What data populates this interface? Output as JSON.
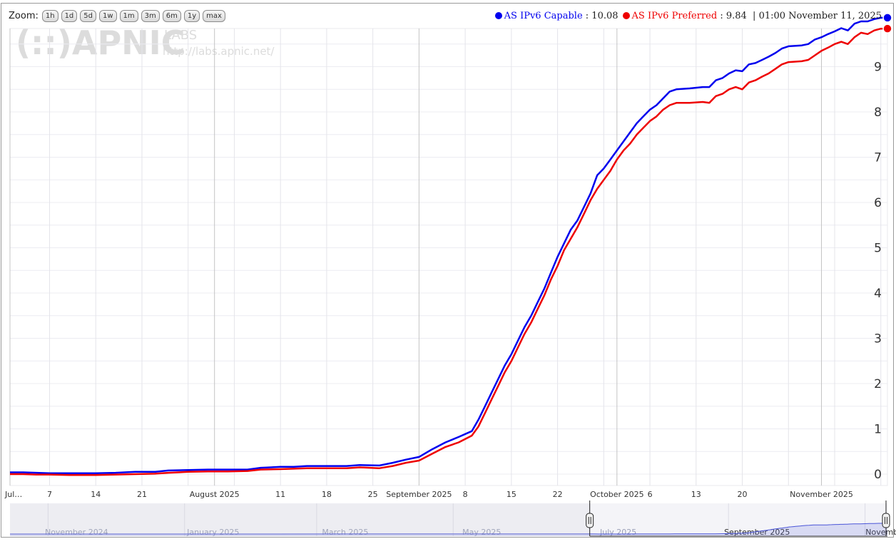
{
  "zoom": {
    "label": "Zoom:",
    "buttons": [
      "1h",
      "1d",
      "5d",
      "1w",
      "1m",
      "3m",
      "6m",
      "1y",
      "max"
    ]
  },
  "legend": {
    "capable": {
      "name": "AS IPv6 Capable",
      "value": "10.08",
      "color": "#0000ee"
    },
    "preferred": {
      "name": "AS IPv6 Preferred",
      "value": "9.84",
      "color": "#ee0000"
    },
    "timestamp": "01:00 November 11, 2025"
  },
  "watermark": {
    "logo": "(::)APNIC",
    "labs": "LABS",
    "url": "http://labs.apnic.net/"
  },
  "chart_data": {
    "type": "line",
    "x_range": [
      "2025-07-01",
      "2025-11-11"
    ],
    "ylim": [
      0,
      10.3
    ],
    "y_ticks": [
      0,
      1,
      2,
      3,
      4,
      5,
      6,
      7,
      8,
      9
    ],
    "x_ticks": [
      {
        "date": "2025-07-01",
        "label": "Jul…"
      },
      {
        "date": "2025-07-07",
        "label": "7"
      },
      {
        "date": "2025-07-14",
        "label": "14"
      },
      {
        "date": "2025-07-21",
        "label": "21"
      },
      {
        "date": "2025-08-01",
        "label": "August 2025"
      },
      {
        "date": "2025-08-11",
        "label": "11"
      },
      {
        "date": "2025-08-18",
        "label": "18"
      },
      {
        "date": "2025-08-25",
        "label": "25"
      },
      {
        "date": "2025-09-01",
        "label": "September 2025"
      },
      {
        "date": "2025-09-08",
        "label": "8"
      },
      {
        "date": "2025-09-15",
        "label": "15"
      },
      {
        "date": "2025-09-22",
        "label": "22"
      },
      {
        "date": "2025-10-01",
        "label": "October 2025"
      },
      {
        "date": "2025-10-06",
        "label": "6"
      },
      {
        "date": "2025-10-13",
        "label": "13"
      },
      {
        "date": "2025-10-20",
        "label": "20"
      },
      {
        "date": "2025-11-01",
        "label": "November 2025"
      }
    ],
    "grid": true,
    "legend_position": "top-right",
    "series": [
      {
        "name": "AS IPv6 Capable",
        "color": "#0000ee",
        "points": [
          [
            "2025-07-01",
            0.04
          ],
          [
            "2025-07-03",
            0.04
          ],
          [
            "2025-07-05",
            0.03
          ],
          [
            "2025-07-07",
            0.02
          ],
          [
            "2025-07-10",
            0.02
          ],
          [
            "2025-07-14",
            0.02
          ],
          [
            "2025-07-17",
            0.03
          ],
          [
            "2025-07-20",
            0.05
          ],
          [
            "2025-07-23",
            0.05
          ],
          [
            "2025-07-25",
            0.08
          ],
          [
            "2025-07-28",
            0.09
          ],
          [
            "2025-07-31",
            0.1
          ],
          [
            "2025-08-03",
            0.1
          ],
          [
            "2025-08-06",
            0.1
          ],
          [
            "2025-08-08",
            0.14
          ],
          [
            "2025-08-11",
            0.16
          ],
          [
            "2025-08-13",
            0.16
          ],
          [
            "2025-08-15",
            0.18
          ],
          [
            "2025-08-18",
            0.18
          ],
          [
            "2025-08-21",
            0.18
          ],
          [
            "2025-08-23",
            0.2
          ],
          [
            "2025-08-26",
            0.19
          ],
          [
            "2025-08-28",
            0.25
          ],
          [
            "2025-08-30",
            0.32
          ],
          [
            "2025-09-01",
            0.38
          ],
          [
            "2025-09-03",
            0.55
          ],
          [
            "2025-09-05",
            0.7
          ],
          [
            "2025-09-07",
            0.82
          ],
          [
            "2025-09-09",
            0.95
          ],
          [
            "2025-09-10",
            1.2
          ],
          [
            "2025-09-11",
            1.5
          ],
          [
            "2025-09-12",
            1.8
          ],
          [
            "2025-09-13",
            2.1
          ],
          [
            "2025-09-14",
            2.4
          ],
          [
            "2025-09-15",
            2.65
          ],
          [
            "2025-09-16",
            2.95
          ],
          [
            "2025-09-17",
            3.25
          ],
          [
            "2025-09-18",
            3.5
          ],
          [
            "2025-09-19",
            3.8
          ],
          [
            "2025-09-20",
            4.1
          ],
          [
            "2025-09-21",
            4.45
          ],
          [
            "2025-09-22",
            4.8
          ],
          [
            "2025-09-23",
            5.1
          ],
          [
            "2025-09-24",
            5.4
          ],
          [
            "2025-09-25",
            5.6
          ],
          [
            "2025-09-26",
            5.9
          ],
          [
            "2025-09-27",
            6.2
          ],
          [
            "2025-09-28",
            6.6
          ],
          [
            "2025-09-29",
            6.75
          ],
          [
            "2025-09-30",
            6.95
          ],
          [
            "2025-10-01",
            7.15
          ],
          [
            "2025-10-02",
            7.35
          ],
          [
            "2025-10-03",
            7.55
          ],
          [
            "2025-10-04",
            7.75
          ],
          [
            "2025-10-05",
            7.9
          ],
          [
            "2025-10-06",
            8.05
          ],
          [
            "2025-10-07",
            8.15
          ],
          [
            "2025-10-08",
            8.3
          ],
          [
            "2025-10-09",
            8.45
          ],
          [
            "2025-10-10",
            8.5
          ],
          [
            "2025-10-12",
            8.52
          ],
          [
            "2025-10-14",
            8.55
          ],
          [
            "2025-10-15",
            8.55
          ],
          [
            "2025-10-16",
            8.7
          ],
          [
            "2025-10-17",
            8.75
          ],
          [
            "2025-10-18",
            8.85
          ],
          [
            "2025-10-19",
            8.92
          ],
          [
            "2025-10-20",
            8.9
          ],
          [
            "2025-10-21",
            9.05
          ],
          [
            "2025-10-22",
            9.08
          ],
          [
            "2025-10-23",
            9.15
          ],
          [
            "2025-10-24",
            9.22
          ],
          [
            "2025-10-25",
            9.3
          ],
          [
            "2025-10-26",
            9.4
          ],
          [
            "2025-10-27",
            9.45
          ],
          [
            "2025-10-29",
            9.47
          ],
          [
            "2025-10-30",
            9.5
          ],
          [
            "2025-10-31",
            9.6
          ],
          [
            "2025-11-01",
            9.65
          ],
          [
            "2025-11-02",
            9.72
          ],
          [
            "2025-11-03",
            9.78
          ],
          [
            "2025-11-04",
            9.85
          ],
          [
            "2025-11-05",
            9.8
          ],
          [
            "2025-11-06",
            9.95
          ],
          [
            "2025-11-07",
            10.0
          ],
          [
            "2025-11-08",
            10.0
          ],
          [
            "2025-11-09",
            10.05
          ],
          [
            "2025-11-10",
            10.08
          ],
          [
            "2025-11-11",
            10.08
          ]
        ]
      },
      {
        "name": "AS IPv6 Preferred",
        "color": "#ee0000",
        "points": [
          [
            "2025-07-01",
            0.0
          ],
          [
            "2025-07-03",
            0.0
          ],
          [
            "2025-07-05",
            -0.01
          ],
          [
            "2025-07-07",
            -0.01
          ],
          [
            "2025-07-10",
            -0.02
          ],
          [
            "2025-07-14",
            -0.02
          ],
          [
            "2025-07-17",
            -0.01
          ],
          [
            "2025-07-20",
            0.0
          ],
          [
            "2025-07-23",
            0.01
          ],
          [
            "2025-07-25",
            0.03
          ],
          [
            "2025-07-28",
            0.05
          ],
          [
            "2025-07-31",
            0.06
          ],
          [
            "2025-08-03",
            0.06
          ],
          [
            "2025-08-06",
            0.07
          ],
          [
            "2025-08-08",
            0.1
          ],
          [
            "2025-08-11",
            0.11
          ],
          [
            "2025-08-13",
            0.12
          ],
          [
            "2025-08-15",
            0.13
          ],
          [
            "2025-08-18",
            0.13
          ],
          [
            "2025-08-21",
            0.13
          ],
          [
            "2025-08-23",
            0.15
          ],
          [
            "2025-08-26",
            0.13
          ],
          [
            "2025-08-28",
            0.18
          ],
          [
            "2025-08-30",
            0.25
          ],
          [
            "2025-09-01",
            0.3
          ],
          [
            "2025-09-03",
            0.45
          ],
          [
            "2025-09-05",
            0.6
          ],
          [
            "2025-09-07",
            0.7
          ],
          [
            "2025-09-09",
            0.85
          ],
          [
            "2025-09-10",
            1.05
          ],
          [
            "2025-09-11",
            1.35
          ],
          [
            "2025-09-12",
            1.65
          ],
          [
            "2025-09-13",
            1.95
          ],
          [
            "2025-09-14",
            2.25
          ],
          [
            "2025-09-15",
            2.5
          ],
          [
            "2025-09-16",
            2.8
          ],
          [
            "2025-09-17",
            3.1
          ],
          [
            "2025-09-18",
            3.35
          ],
          [
            "2025-09-19",
            3.65
          ],
          [
            "2025-09-20",
            3.95
          ],
          [
            "2025-09-21",
            4.3
          ],
          [
            "2025-09-22",
            4.6
          ],
          [
            "2025-09-23",
            4.95
          ],
          [
            "2025-09-24",
            5.2
          ],
          [
            "2025-09-25",
            5.45
          ],
          [
            "2025-09-26",
            5.75
          ],
          [
            "2025-09-27",
            6.05
          ],
          [
            "2025-09-28",
            6.3
          ],
          [
            "2025-09-29",
            6.5
          ],
          [
            "2025-09-30",
            6.7
          ],
          [
            "2025-10-01",
            6.95
          ],
          [
            "2025-10-02",
            7.15
          ],
          [
            "2025-10-03",
            7.3
          ],
          [
            "2025-10-04",
            7.5
          ],
          [
            "2025-10-05",
            7.65
          ],
          [
            "2025-10-06",
            7.8
          ],
          [
            "2025-10-07",
            7.9
          ],
          [
            "2025-10-08",
            8.05
          ],
          [
            "2025-10-09",
            8.15
          ],
          [
            "2025-10-10",
            8.2
          ],
          [
            "2025-10-12",
            8.2
          ],
          [
            "2025-10-14",
            8.22
          ],
          [
            "2025-10-15",
            8.2
          ],
          [
            "2025-10-16",
            8.35
          ],
          [
            "2025-10-17",
            8.4
          ],
          [
            "2025-10-18",
            8.5
          ],
          [
            "2025-10-19",
            8.55
          ],
          [
            "2025-10-20",
            8.5
          ],
          [
            "2025-10-21",
            8.65
          ],
          [
            "2025-10-22",
            8.7
          ],
          [
            "2025-10-23",
            8.78
          ],
          [
            "2025-10-24",
            8.85
          ],
          [
            "2025-10-25",
            8.95
          ],
          [
            "2025-10-26",
            9.05
          ],
          [
            "2025-10-27",
            9.1
          ],
          [
            "2025-10-29",
            9.12
          ],
          [
            "2025-10-30",
            9.15
          ],
          [
            "2025-10-31",
            9.25
          ],
          [
            "2025-11-01",
            9.35
          ],
          [
            "2025-11-02",
            9.42
          ],
          [
            "2025-11-03",
            9.5
          ],
          [
            "2025-11-04",
            9.55
          ],
          [
            "2025-11-05",
            9.5
          ],
          [
            "2025-11-06",
            9.65
          ],
          [
            "2025-11-07",
            9.75
          ],
          [
            "2025-11-08",
            9.72
          ],
          [
            "2025-11-09",
            9.8
          ],
          [
            "2025-11-10",
            9.84
          ],
          [
            "2025-11-11",
            9.84
          ]
        ]
      }
    ]
  },
  "navigator": {
    "labels": [
      "November 2024",
      "January 2025",
      "March 2025",
      "May 2025",
      "July 2025",
      "September 2025",
      "November 2…"
    ],
    "label_dates": [
      "2024-11-01",
      "2025-01-01",
      "2025-03-01",
      "2025-05-01",
      "2025-07-01",
      "2025-09-01",
      "2025-11-01"
    ],
    "range": [
      "2024-10-15",
      "2025-11-11"
    ],
    "selection": [
      "2025-07-01",
      "2025-11-11"
    ]
  }
}
